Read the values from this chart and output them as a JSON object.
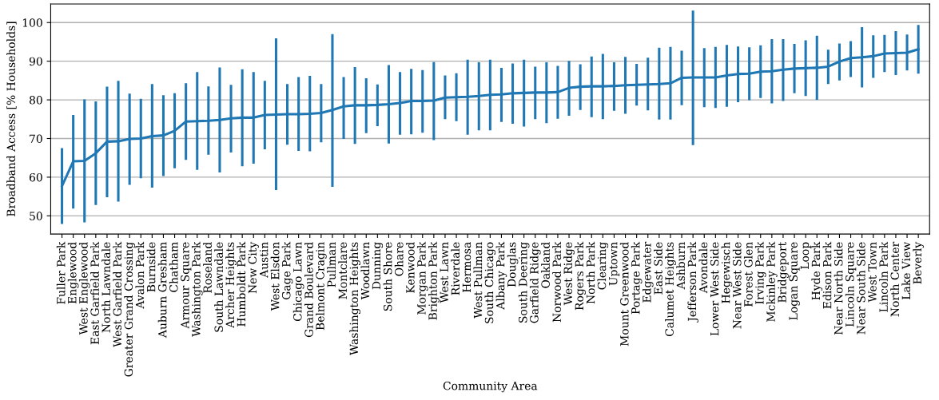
{
  "chart_data": {
    "type": "line",
    "xlabel": "Community Area",
    "ylabel": "Broadband Access [% Households]",
    "categories": [
      "Fuller Park",
      "Englewood",
      "West Englewood",
      "East Garfield Park",
      "North Lawndale",
      "West Garfield Park",
      "Greater Grand Crossing",
      "Avalon Park",
      "Burnside",
      "Auburn Gresham",
      "Chatham",
      "Armour Square",
      "Washington Park",
      "Roseland",
      "South Lawndale",
      "Archer Heights",
      "Humboldt Park",
      "New City",
      "Austin",
      "West Elsdon",
      "Gage Park",
      "Chicago Lawn",
      "Grand Boulevard",
      "Belmont Cragin",
      "Pullman",
      "Montclare",
      "Washington Heights",
      "Woodlawn",
      "Dunning",
      "South Shore",
      "Ohare",
      "Kenwood",
      "Morgan Park",
      "Brighton Park",
      "West Lawn",
      "Riverdale",
      "Hermosa",
      "West Pullman",
      "South Chicago",
      "Albany Park",
      "Douglas",
      "South Deering",
      "Garfield Ridge",
      "Oakland",
      "Norwood Park",
      "West Ridge",
      "Rogers Park",
      "North Park",
      "Clearing",
      "Uptown",
      "Mount Greenwood",
      "Portage Park",
      "Edgewater",
      "East Side",
      "Calumet Heights",
      "Ashburn",
      "Jefferson Park",
      "Avondale",
      "Lower West Side",
      "Hegewisch",
      "Near West Side",
      "Forest Glen",
      "Irving Park",
      "Mckinley Park",
      "Bridgeport",
      "Logan Square",
      "Loop",
      "Hyde Park",
      "Edison Park",
      "Near North Side",
      "Lincoln Square",
      "Near South Side",
      "West Town",
      "Lincoln Park",
      "North Center",
      "Lake View",
      "Beverly"
    ],
    "series": [
      {
        "color": "#1f77b4",
        "values": [
          57.7,
          64.1,
          64.2,
          66.2,
          69.2,
          69.3,
          69.9,
          70.0,
          70.6,
          70.8,
          72.0,
          74.4,
          74.5,
          74.6,
          74.8,
          75.2,
          75.4,
          75.4,
          76.1,
          76.2,
          76.3,
          76.3,
          76.4,
          76.6,
          77.4,
          78.3,
          78.6,
          78.6,
          78.7,
          78.9,
          79.2,
          79.7,
          79.7,
          79.8,
          80.6,
          80.7,
          80.8,
          81.0,
          81.3,
          81.4,
          81.7,
          81.8,
          81.9,
          81.9,
          82.0,
          83.1,
          83.4,
          83.5,
          83.5,
          83.6,
          83.8,
          83.9,
          84.0,
          84.1,
          84.3,
          85.7,
          85.8,
          85.8,
          85.8,
          86.3,
          86.7,
          86.8,
          87.3,
          87.4,
          87.8,
          88.1,
          88.2,
          88.3,
          88.6,
          89.9,
          90.8,
          91.0,
          91.3,
          92.0,
          92.1,
          92.2,
          93.1
        ],
        "errors": [
          [
            47.9,
            67.5
          ],
          [
            51.9,
            76.1
          ],
          [
            48.3,
            80.1
          ],
          [
            52.8,
            79.6
          ],
          [
            54.8,
            83.4
          ],
          [
            53.7,
            84.9
          ],
          [
            58.0,
            81.6
          ],
          [
            59.7,
            80.3
          ],
          [
            57.3,
            84.1
          ],
          [
            60.3,
            81.2
          ],
          [
            62.3,
            81.7
          ],
          [
            64.5,
            84.3
          ],
          [
            61.9,
            87.2
          ],
          [
            65.8,
            83.5
          ],
          [
            61.2,
            88.4
          ],
          [
            66.4,
            83.9
          ],
          [
            62.8,
            87.9
          ],
          [
            63.5,
            87.2
          ],
          [
            67.2,
            84.9
          ],
          [
            56.7,
            95.9
          ],
          [
            68.4,
            84.1
          ],
          [
            66.8,
            85.9
          ],
          [
            66.7,
            86.2
          ],
          [
            69.0,
            84.1
          ],
          [
            57.5,
            97.0
          ],
          [
            69.9,
            85.9
          ],
          [
            68.6,
            88.5
          ],
          [
            71.4,
            85.6
          ],
          [
            73.2,
            84.0
          ],
          [
            68.7,
            89.0
          ],
          [
            71.0,
            87.2
          ],
          [
            71.1,
            88.0
          ],
          [
            71.5,
            87.7
          ],
          [
            69.6,
            89.8
          ],
          [
            75.0,
            86.3
          ],
          [
            74.5,
            86.9
          ],
          [
            71.0,
            90.4
          ],
          [
            72.1,
            89.7
          ],
          [
            72.1,
            90.4
          ],
          [
            74.3,
            88.3
          ],
          [
            73.8,
            89.4
          ],
          [
            73.1,
            90.4
          ],
          [
            75.0,
            88.6
          ],
          [
            74.0,
            89.7
          ],
          [
            75.1,
            88.8
          ],
          [
            75.9,
            90.1
          ],
          [
            77.4,
            89.2
          ],
          [
            75.5,
            91.2
          ],
          [
            75.0,
            91.9
          ],
          [
            77.2,
            89.7
          ],
          [
            76.4,
            91.1
          ],
          [
            78.5,
            89.3
          ],
          [
            77.3,
            90.9
          ],
          [
            74.9,
            93.5
          ],
          [
            74.9,
            93.7
          ],
          [
            78.6,
            92.7
          ],
          [
            68.3,
            103.1
          ],
          [
            78.1,
            93.4
          ],
          [
            77.9,
            93.7
          ],
          [
            78.2,
            94.2
          ],
          [
            79.4,
            93.8
          ],
          [
            79.9,
            93.6
          ],
          [
            80.5,
            94.1
          ],
          [
            79.1,
            95.7
          ],
          [
            79.7,
            95.7
          ],
          [
            81.7,
            94.5
          ],
          [
            81.0,
            95.4
          ],
          [
            80.0,
            96.6
          ],
          [
            84.1,
            93.0
          ],
          [
            85.0,
            94.6
          ],
          [
            85.9,
            95.2
          ],
          [
            83.2,
            98.8
          ],
          [
            85.7,
            96.7
          ],
          [
            87.2,
            96.8
          ],
          [
            86.4,
            97.8
          ],
          [
            87.6,
            96.9
          ],
          [
            86.8,
            99.4
          ]
        ]
      }
    ],
    "ylim": [
      45.3,
      104.8
    ],
    "yticks": [
      50,
      60,
      70,
      80,
      90,
      100
    ],
    "grid": "y",
    "marker": "none",
    "line_style": "solid"
  }
}
